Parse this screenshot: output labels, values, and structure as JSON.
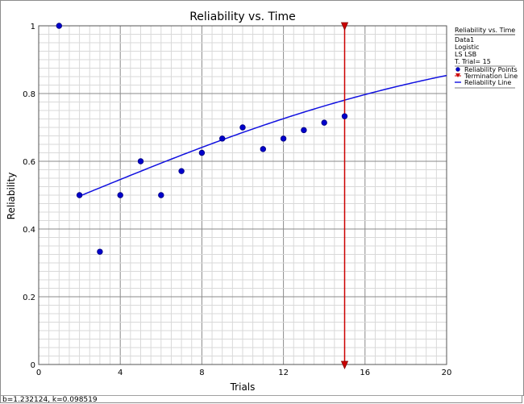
{
  "status_text": "b=1.232124, k=0.098519",
  "colors": {
    "points": "#0000cc",
    "points_edge": "#000080",
    "line": "#1010e0",
    "termination": "#cc0000",
    "grid_major": "#8a8a8a",
    "grid_minor": "#d9d9d9"
  },
  "legend": {
    "title": "Reliability vs. Time",
    "lines": [
      "Data1",
      "Logistic",
      "LS LSB",
      "T. Trial= 15"
    ],
    "entries": [
      {
        "label": "Reliability Points",
        "kind": "point"
      },
      {
        "label": "Termination Line",
        "kind": "termination"
      },
      {
        "label": "Reliability Line",
        "kind": "line"
      }
    ]
  },
  "chart_data": {
    "type": "scatter",
    "title": "Reliability vs. Time",
    "xlabel": "Trials",
    "ylabel": "Reliability",
    "xlim": [
      0,
      20
    ],
    "ylim": [
      0,
      1
    ],
    "xticks": [
      0,
      4,
      8,
      12,
      16,
      20
    ],
    "yticks": [
      0,
      0.2,
      0.4,
      0.6,
      0.8,
      1
    ],
    "grid": true,
    "legend_position": "right",
    "series": [
      {
        "name": "Reliability Points",
        "type": "scatter",
        "x": [
          1,
          2,
          3,
          4,
          5,
          6,
          7,
          8,
          9,
          10,
          11,
          12,
          13,
          14,
          15
        ],
        "y": [
          1.0,
          0.5,
          0.333,
          0.5,
          0.6,
          0.5,
          0.571,
          0.625,
          0.667,
          0.7,
          0.636,
          0.667,
          0.692,
          0.714,
          0.733
        ]
      },
      {
        "name": "Reliability Line",
        "type": "line",
        "model": "logistic",
        "b": 1.232124,
        "k": 0.098519,
        "x_range": [
          2,
          20
        ]
      },
      {
        "name": "Termination Line",
        "type": "vline",
        "x": 15
      }
    ]
  }
}
